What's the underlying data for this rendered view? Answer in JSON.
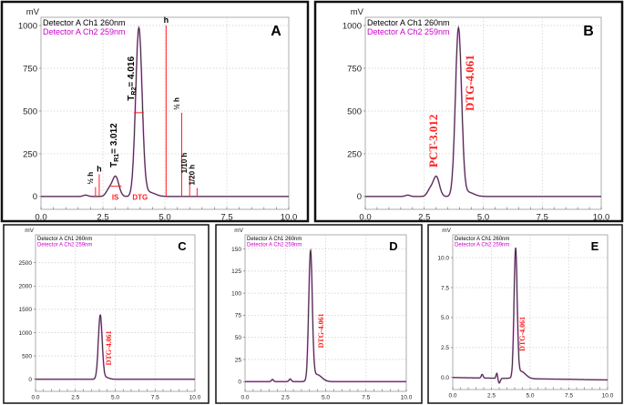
{
  "legend": {
    "ch1": "Detector A Ch1 260nm",
    "ch2": "Detector A Ch2 259nm",
    "ch1_color": "#000000",
    "ch2_color": "#cc00cc"
  },
  "y_unit": "mV",
  "colors": {
    "trace": "#333333",
    "trace_edge": "#cc33cc",
    "annotation": "#ff2020",
    "grid": "#cccccc"
  },
  "chart_data": [
    {
      "panel": "A",
      "type": "line",
      "xlim": [
        0,
        10
      ],
      "ylim": [
        -75,
        1048
      ],
      "xticks": [
        "0.0",
        "2.5",
        "5.0",
        "7.5",
        "10.0"
      ],
      "xtick_values": [
        0,
        2.5,
        5,
        7.5,
        10
      ],
      "yticks": [
        "0",
        "250",
        "500",
        "750",
        "1000"
      ],
      "ytick_values": [
        0,
        250,
        500,
        750,
        1000
      ],
      "grid": true,
      "peaks": [
        {
          "rt": 1.8,
          "height": 8,
          "sigma": 0.1
        },
        {
          "rt": 2.75,
          "height": 40,
          "sigma": 0.12
        },
        {
          "rt": 3.012,
          "height": 115,
          "sigma": 0.13
        },
        {
          "rt": 3.95,
          "height": 980,
          "sigma": 0.13
        },
        {
          "rt": 4.35,
          "height": 25,
          "sigma": 0.25
        }
      ],
      "markers": [
        {
          "x": 2.2,
          "y": 55,
          "label": "½ h"
        },
        {
          "x": 2.35,
          "y": 130,
          "label": "h"
        },
        {
          "x": 5.05,
          "y": 1000,
          "label": "h"
        },
        {
          "x": 5.68,
          "y": 490,
          "label": "½ h"
        },
        {
          "x": 6.0,
          "y": 120,
          "label": "1/10 h"
        },
        {
          "x": 6.3,
          "y": 50,
          "label": "1/20 h"
        }
      ],
      "half_height_bars": [
        {
          "x1": 2.8,
          "x2": 3.25,
          "y": 60
        },
        {
          "x1": 3.75,
          "x2": 4.15,
          "y": 490
        }
      ],
      "peak_labels": [
        {
          "text": "IS",
          "x": 3.0,
          "y": -20
        },
        {
          "text": "DTG",
          "x": 4.0,
          "y": -20
        }
      ],
      "rt_labels": [
        {
          "prefix": "T",
          "sub": "R1",
          "suffix": "= 3.012",
          "x": 3.05,
          "y": 170
        },
        {
          "prefix": "T",
          "sub": "R2",
          "suffix": "= 4.016",
          "x": 3.75,
          "y": 560
        }
      ]
    },
    {
      "panel": "B",
      "type": "line",
      "xlim": [
        0,
        10
      ],
      "ylim": [
        -75,
        1048
      ],
      "xticks": [
        "0.0",
        "2.5",
        "5.0",
        "7.5",
        "10.0"
      ],
      "xtick_values": [
        0,
        2.5,
        5,
        7.5,
        10
      ],
      "yticks": [
        "0",
        "250",
        "500",
        "750",
        "1000"
      ],
      "ytick_values": [
        0,
        250,
        500,
        750,
        1000
      ],
      "grid": true,
      "peaks": [
        {
          "rt": 1.8,
          "height": 8,
          "sigma": 0.1
        },
        {
          "rt": 2.75,
          "height": 40,
          "sigma": 0.12
        },
        {
          "rt": 3.012,
          "height": 115,
          "sigma": 0.13
        },
        {
          "rt": 3.95,
          "height": 980,
          "sigma": 0.13
        },
        {
          "rt": 4.35,
          "height": 25,
          "sigma": 0.25
        }
      ],
      "compound_labels": [
        {
          "text": "PCT-3.012",
          "x": 3.05,
          "y": 170
        },
        {
          "text": "DTG-4.061",
          "x": 4.6,
          "y": 500
        }
      ]
    },
    {
      "panel": "C",
      "type": "line",
      "xlim": [
        0,
        10
      ],
      "ylim": [
        -260,
        3100
      ],
      "xticks": [
        "0.0",
        "2.5",
        "5.0",
        "7.5",
        "10.0"
      ],
      "xtick_values": [
        0,
        2.5,
        5,
        7.5,
        10
      ],
      "yticks": [
        "0",
        "500",
        "1000",
        "1500",
        "2000",
        "2500"
      ],
      "ytick_values": [
        0,
        500,
        1000,
        1500,
        2000,
        2500
      ],
      "grid": true,
      "peaks": [
        {
          "rt": 4.06,
          "height": 1370,
          "sigma": 0.12
        },
        {
          "rt": 4.4,
          "height": 40,
          "sigma": 0.2
        }
      ],
      "compound_labels": [
        {
          "text": "DTG-4.061",
          "x": 4.75,
          "y": 300
        }
      ]
    },
    {
      "panel": "D",
      "type": "line",
      "xlim": [
        0,
        10
      ],
      "ylim": [
        -11,
        166
      ],
      "xticks": [
        "0.0",
        "2.5",
        "5.0",
        "7.5",
        "10.0"
      ],
      "xtick_values": [
        0,
        2.5,
        5,
        7.5,
        10
      ],
      "yticks": [
        "0",
        "25",
        "50",
        "75",
        "100",
        "125",
        "150"
      ],
      "ytick_values": [
        0,
        25,
        50,
        75,
        100,
        125,
        150
      ],
      "grid": true,
      "peaks": [
        {
          "rt": 1.7,
          "height": 2.5,
          "sigma": 0.06
        },
        {
          "rt": 2.8,
          "height": 3,
          "sigma": 0.07
        },
        {
          "rt": 4.06,
          "height": 145,
          "sigma": 0.11
        },
        {
          "rt": 4.45,
          "height": 8,
          "sigma": 0.3
        }
      ],
      "compound_labels": [
        {
          "text": "DTG-4.061",
          "x": 4.85,
          "y": 38
        }
      ]
    },
    {
      "panel": "E",
      "type": "line",
      "xlim": [
        0,
        10
      ],
      "ylim": [
        -1,
        11.9
      ],
      "xticks": [
        "0.0",
        "2.5",
        "5.0",
        "7.5",
        "10.0"
      ],
      "xtick_values": [
        0,
        2.5,
        5,
        7.5,
        10
      ],
      "yticks": [
        "0.0",
        "2.5",
        "5.0",
        "7.5",
        "10.0"
      ],
      "ytick_values": [
        0,
        2.5,
        5,
        7.5,
        10
      ],
      "grid": true,
      "drift": [
        0,
        -0.2
      ],
      "peaks": [
        {
          "rt": 1.9,
          "height": 0.3,
          "sigma": 0.06
        },
        {
          "rt": 2.85,
          "height": 0.45,
          "sigma": 0.05
        },
        {
          "rt": 3.0,
          "height": -0.4,
          "sigma": 0.07
        },
        {
          "rt": 4.06,
          "height": 10.6,
          "sigma": 0.1
        },
        {
          "rt": 4.4,
          "height": 0.6,
          "sigma": 0.3
        }
      ],
      "compound_labels": [
        {
          "text": "DTG-4.061",
          "x": 4.65,
          "y": 2.2
        }
      ]
    }
  ]
}
